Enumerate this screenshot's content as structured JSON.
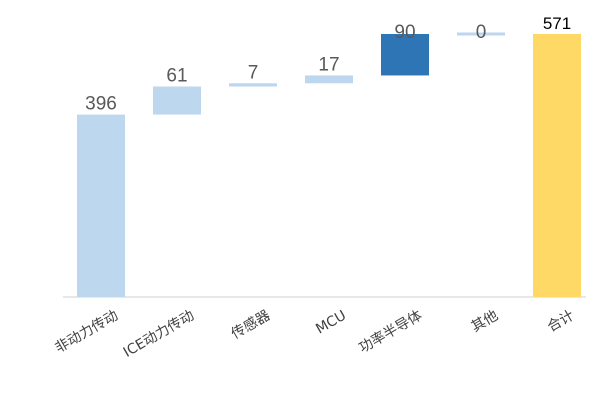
{
  "chart_data": {
    "type": "waterfall",
    "title": "",
    "xlabel": "",
    "ylabel": "",
    "categories": [
      "非动力传动",
      "ICE动力传动",
      "传感器",
      "MCU",
      "功率半导体",
      "其他",
      "合计"
    ],
    "values": [
      396,
      61,
      7,
      17,
      90,
      0,
      571
    ],
    "labels": [
      "396",
      "61",
      "7",
      "17",
      "90",
      "0",
      "571"
    ],
    "ylim": [
      0,
      571
    ],
    "grid": false,
    "legend": "none",
    "colors": {
      "default": "#bdd7ee",
      "highlight": "#2e75b6",
      "total": "#ffd966",
      "axis": "#d9d9d9",
      "value_label": "#595959",
      "total_label": "#000000",
      "category_label": "#404040"
    },
    "highlight_index": 4,
    "total_index": 6
  }
}
